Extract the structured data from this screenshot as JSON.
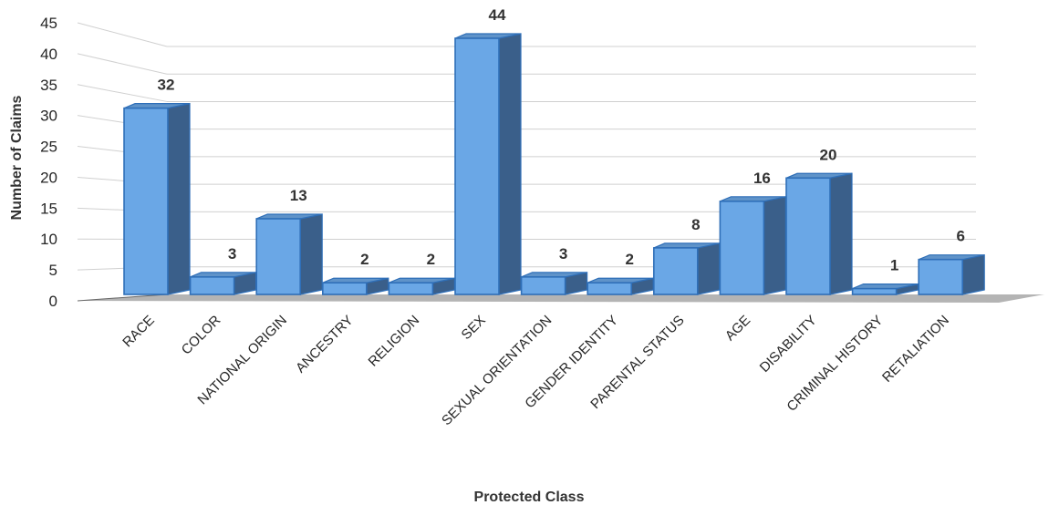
{
  "chart_data": {
    "type": "bar",
    "style": "3d-column",
    "xlabel": "Protected Class",
    "ylabel": "Number of Claims",
    "ylim": [
      0,
      45
    ],
    "yticks": [
      0,
      5,
      10,
      15,
      20,
      25,
      30,
      35,
      40,
      45
    ],
    "grid": true,
    "legend": "none",
    "colors": {
      "bar": "#6aa7e6",
      "bar_edge": "#2f6fb8",
      "bar_side": "#3a5f8a",
      "floor": "#b4b4b4",
      "grid": "#d0d0d0"
    },
    "categories": [
      "RACE",
      "COLOR",
      "NATIONAL ORIGIN",
      "ANCESTRY",
      "RELIGION",
      "SEX",
      "SEXUAL ORIENTATION",
      "GENDER IDENTITY",
      "PARENTAL STATUS",
      "AGE",
      "DISABILITY",
      "CRIMINAL HISTORY",
      "RETALIATION"
    ],
    "values": [
      32,
      3,
      13,
      2,
      2,
      44,
      3,
      2,
      8,
      16,
      20,
      1,
      6
    ]
  }
}
